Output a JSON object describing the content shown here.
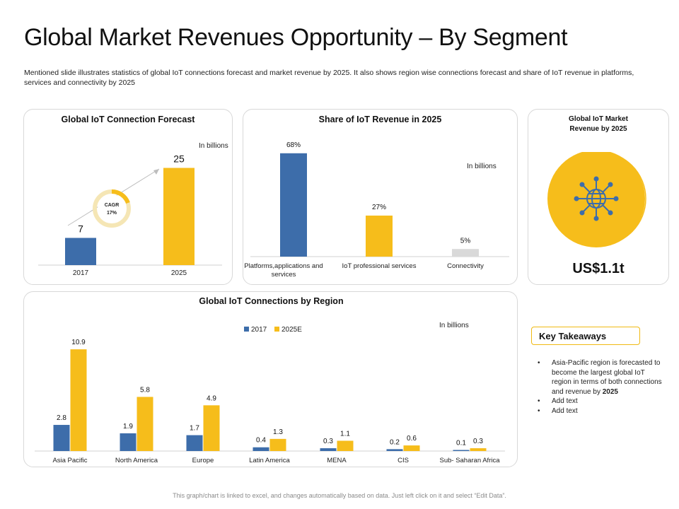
{
  "title": "Global Market Revenues Opportunity – By Segment",
  "subtitle": "Mentioned slide illustrates statistics of global IoT connections forecast and market revenue by 2025. It also shows region wise connections forecast and share of IoT revenue in platforms, services and connectivity by 2025",
  "colors": {
    "blue": "#3d6daa",
    "yellow": "#f6bd1b",
    "gray": "#d9d9d9"
  },
  "forecast": {
    "title": "Global IoT Connection Forecast",
    "unit_note": "In billions",
    "cagr_label": "CAGR",
    "cagr_value": "17%"
  },
  "share": {
    "title": "Share of IoT Revenue in 2025",
    "unit_note": "In billions"
  },
  "revenue": {
    "title_line1": "Global IoT Market",
    "title_line2": "Revenue by 2025",
    "icon": "iot-globe-network-icon",
    "value": "US$1.1t"
  },
  "region": {
    "title": "Global IoT Connections by Region",
    "unit_note": "In billions"
  },
  "key_takeaways": {
    "heading": "Key Takeaways",
    "item1_text": "Asia-Pacific region is forecasted to become the largest global IoT region in terms of both connections and revenue by ",
    "item1_bold": "2025",
    "item2": "Add text",
    "item3": "Add text"
  },
  "footer": "This graph/chart is linked to excel, and changes automatically based on data. Just left click on it and select “Edit Data”.",
  "chart_data": [
    {
      "type": "bar",
      "title": "Global IoT Connection Forecast",
      "categories": [
        "2017",
        "2025"
      ],
      "values": [
        7,
        25
      ],
      "colors": [
        "#3d6daa",
        "#f6bd1b"
      ],
      "annotation": "CAGR 17%"
    },
    {
      "type": "bar",
      "title": "Share of IoT Revenue in 2025",
      "categories": [
        "Platforms,applications and services",
        "IoT professional services",
        "Connectivity"
      ],
      "values": [
        68,
        27,
        5
      ],
      "value_labels": [
        "68%",
        "27%",
        "5%"
      ],
      "colors": [
        "#3d6daa",
        "#f6bd1b",
        "#d9d9d9"
      ]
    },
    {
      "type": "bar",
      "title": "Global IoT Connections by Region",
      "categories": [
        "Asia Pacific",
        "North America",
        "Europe",
        "Latin America",
        "MENA",
        "CIS",
        "Sub- Saharan Africa"
      ],
      "series": [
        {
          "name": "2017",
          "values": [
            2.8,
            1.9,
            1.7,
            0.4,
            0.3,
            0.2,
            0.1
          ],
          "color": "#3d6daa"
        },
        {
          "name": "2025E",
          "values": [
            10.9,
            5.8,
            4.9,
            1.3,
            1.1,
            0.6,
            0.3
          ],
          "color": "#f6bd1b"
        }
      ],
      "legend": "top"
    }
  ]
}
